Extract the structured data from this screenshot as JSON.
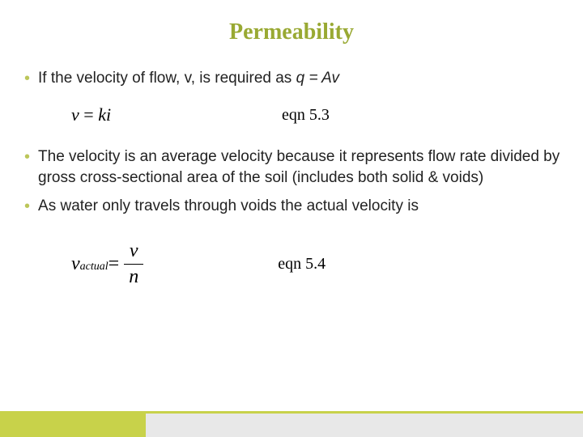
{
  "title": "Permeability",
  "bullets": {
    "b1_prefix": "If the velocity of flow, v, is required as ",
    "b1_eq": "q = Av",
    "b2": "The velocity is an average velocity because it represents flow rate divided by gross cross-sectional area of the soil (includes both solid & voids)",
    "b3": "As water only travels through voids the actual velocity is"
  },
  "eq1": {
    "lhs_v": "v",
    "eq": " = ",
    "rhs": "ki",
    "label": "eqn 5.3"
  },
  "eq2": {
    "v": "v",
    "sub": "actual",
    "eq": " = ",
    "num": "v",
    "den": "n",
    "label": "eqn 5.4"
  },
  "colors": {
    "title": "#99a933",
    "bullet_dot": "#bcc65a",
    "footer_accent": "#c8d24a",
    "footer_gray": "#e8e8e8"
  }
}
